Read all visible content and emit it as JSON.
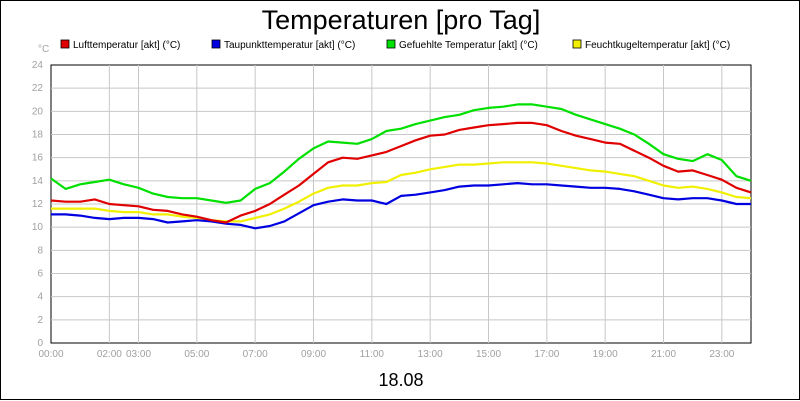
{
  "chart_data": {
    "type": "line",
    "title": "Temperaturen [pro Tag]",
    "ylabel": "°C",
    "xlabel": "18.08",
    "ylim": [
      0,
      24
    ],
    "xlim": [
      0,
      24
    ],
    "grid": true,
    "legend_position": "top",
    "y_ticks": [
      "0",
      "2",
      "4",
      "6",
      "8",
      "10",
      "12",
      "14",
      "16",
      "18",
      "20",
      "22",
      "24"
    ],
    "x_ticks": [
      {
        "h": 0,
        "label": "00:00"
      },
      {
        "h": 2,
        "label": "02:00"
      },
      {
        "h": 3,
        "label": "03:00"
      },
      {
        "h": 5,
        "label": "05:00"
      },
      {
        "h": 7,
        "label": "07:00"
      },
      {
        "h": 9,
        "label": "09:00"
      },
      {
        "h": 11,
        "label": "11:00"
      },
      {
        "h": 13,
        "label": "13:00"
      },
      {
        "h": 15,
        "label": "15:00"
      },
      {
        "h": 17,
        "label": "17:00"
      },
      {
        "h": 19,
        "label": "19:00"
      },
      {
        "h": 21,
        "label": "21:00"
      },
      {
        "h": 23,
        "label": "23:00"
      }
    ],
    "x": [
      0,
      0.5,
      1,
      1.5,
      2,
      2.5,
      3,
      3.5,
      4,
      4.5,
      5,
      5.5,
      6,
      6.5,
      7,
      7.5,
      8,
      8.5,
      9,
      9.5,
      10,
      10.5,
      11,
      11.5,
      12,
      12.5,
      13,
      13.5,
      14,
      14.5,
      15,
      15.5,
      16,
      16.5,
      17,
      17.5,
      18,
      18.5,
      19,
      19.5,
      20,
      20.5,
      21,
      21.5,
      22,
      22.5,
      23,
      23.5,
      24
    ],
    "series": [
      {
        "name": "Lufttemperatur [akt] (°C)",
        "color": "#e00000",
        "values": [
          12.3,
          12.2,
          12.2,
          12.4,
          12.0,
          11.9,
          11.8,
          11.5,
          11.4,
          11.1,
          10.9,
          10.6,
          10.4,
          11.0,
          11.4,
          12.0,
          12.8,
          13.6,
          14.6,
          15.6,
          16.0,
          15.9,
          16.2,
          16.5,
          17.0,
          17.5,
          17.9,
          18.0,
          18.4,
          18.6,
          18.8,
          18.9,
          19.0,
          19.0,
          18.8,
          18.3,
          17.9,
          17.6,
          17.3,
          17.2,
          16.6,
          16.0,
          15.3,
          14.8,
          14.9,
          14.5,
          14.1,
          13.4,
          13.0
        ]
      },
      {
        "name": "Taupunkttemperatur [akt] (°C)",
        "color": "#0000e0",
        "values": [
          11.1,
          11.1,
          11.0,
          10.8,
          10.7,
          10.8,
          10.8,
          10.7,
          10.4,
          10.5,
          10.6,
          10.5,
          10.3,
          10.2,
          9.9,
          10.1,
          10.5,
          11.2,
          11.9,
          12.2,
          12.4,
          12.3,
          12.3,
          12.0,
          12.7,
          12.8,
          13.0,
          13.2,
          13.5,
          13.6,
          13.6,
          13.7,
          13.8,
          13.7,
          13.7,
          13.6,
          13.5,
          13.4,
          13.4,
          13.3,
          13.1,
          12.8,
          12.5,
          12.4,
          12.5,
          12.5,
          12.3,
          12.0,
          12.0
        ]
      },
      {
        "name": "Gefuehlte Temperatur [akt] (°C)",
        "color": "#00e000",
        "values": [
          14.2,
          13.3,
          13.7,
          13.9,
          14.1,
          13.7,
          13.4,
          12.9,
          12.6,
          12.5,
          12.5,
          12.3,
          12.1,
          12.3,
          13.3,
          13.8,
          14.8,
          15.9,
          16.8,
          17.4,
          17.3,
          17.2,
          17.6,
          18.3,
          18.5,
          18.9,
          19.2,
          19.5,
          19.7,
          20.1,
          20.3,
          20.4,
          20.6,
          20.6,
          20.4,
          20.2,
          19.7,
          19.3,
          18.9,
          18.5,
          18.0,
          17.2,
          16.3,
          15.9,
          15.7,
          16.3,
          15.8,
          14.4,
          14.0
        ]
      },
      {
        "name": "Feuchtkugeltemperatur [akt] (°C)",
        "color": "#f0f000",
        "values": [
          11.6,
          11.6,
          11.6,
          11.6,
          11.4,
          11.3,
          11.3,
          11.1,
          11.1,
          10.9,
          10.8,
          10.6,
          10.5,
          10.5,
          10.8,
          11.1,
          11.6,
          12.2,
          12.9,
          13.4,
          13.6,
          13.6,
          13.8,
          13.9,
          14.5,
          14.7,
          15.0,
          15.2,
          15.4,
          15.4,
          15.5,
          15.6,
          15.6,
          15.6,
          15.5,
          15.3,
          15.1,
          14.9,
          14.8,
          14.6,
          14.4,
          14.0,
          13.6,
          13.4,
          13.5,
          13.3,
          13.0,
          12.6,
          12.5
        ]
      }
    ]
  }
}
